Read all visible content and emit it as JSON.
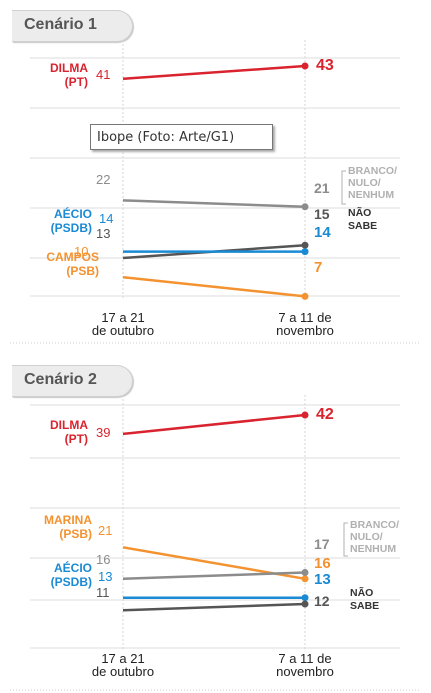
{
  "tooltip": "Ibope (Foto: Arte/G1)",
  "chart_data": [
    {
      "type": "line",
      "title": "Cenário 1",
      "x": [
        "17 a 21 de outubro",
        "7 a 11 de novembro"
      ],
      "x_tick_labels": [
        [
          "17 a 21",
          "de outubro"
        ],
        [
          "7 a 11 de",
          "novembro"
        ]
      ],
      "series": [
        {
          "name": "DILMA (PT)",
          "label_lines": [
            "DILMA",
            "(PT)"
          ],
          "values": [
            41,
            43
          ],
          "color": "#d9232e"
        },
        {
          "name": "BRANCO/NULO/NENHUM",
          "label_lines": [
            "BRANCO/",
            "NULO/",
            "NENHUM"
          ],
          "values": [
            22,
            21
          ],
          "color": "#8c8c8c"
        },
        {
          "name": "NÃO SABE",
          "label_lines": [
            "NÃO",
            "SABE"
          ],
          "values": [
            13,
            15
          ],
          "color": "#555555"
        },
        {
          "name": "AÉCIO (PSDB)",
          "label_lines": [
            "AÉCIO",
            "(PSDB)"
          ],
          "values": [
            14,
            14
          ],
          "color": "#1a8ad4"
        },
        {
          "name": "CAMPOS (PSB)",
          "label_lines": [
            "CAMPOS",
            "(PSB)"
          ],
          "values": [
            10,
            7
          ],
          "color": "#f3922f"
        }
      ]
    },
    {
      "type": "line",
      "title": "Cenário 2",
      "x": [
        "17 a 21 de outubro",
        "7 a 11 de novembro"
      ],
      "x_tick_labels": [
        [
          "17 a 21",
          "de outubro"
        ],
        [
          "7 a 11 de",
          "novembro"
        ]
      ],
      "series": [
        {
          "name": "DILMA (PT)",
          "label_lines": [
            "DILMA",
            "(PT)"
          ],
          "values": [
            39,
            42
          ],
          "color": "#d9232e"
        },
        {
          "name": "MARINA (PSB)",
          "label_lines": [
            "MARINA",
            "(PSB)"
          ],
          "values": [
            21,
            16
          ],
          "color": "#f3922f"
        },
        {
          "name": "BRANCO/NULO/NENHUM",
          "label_lines": [
            "BRANCO/",
            "NULO/",
            "NENHUM"
          ],
          "values": [
            16,
            17
          ],
          "color": "#8c8c8c"
        },
        {
          "name": "AÉCIO (PSDB)",
          "label_lines": [
            "AÉCIO",
            "(PSDB)"
          ],
          "values": [
            13,
            13
          ],
          "color": "#1a8ad4"
        },
        {
          "name": "NÃO SABE",
          "label_lines": [
            "NÃO",
            "SABE"
          ],
          "values": [
            11,
            12
          ],
          "color": "#555555"
        }
      ]
    }
  ]
}
